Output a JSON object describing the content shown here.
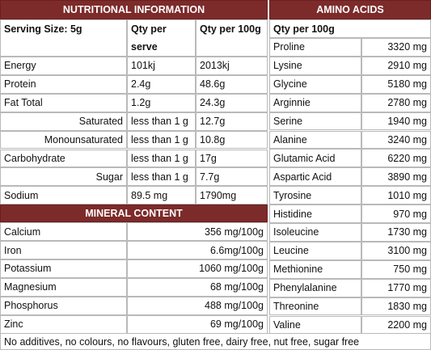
{
  "nutrition": {
    "title": "NUTRITIONAL INFORMATION",
    "header": [
      "Serving Size: 5g",
      "Qty per serve",
      "Qty per 100g"
    ],
    "rows": [
      [
        "Energy",
        "101kj",
        "2013kj"
      ],
      [
        "Protein",
        "2.4g",
        "48.6g"
      ],
      [
        "Fat Total",
        "1.2g",
        "24.3g"
      ],
      [
        "Saturated",
        "less than 1 g",
        "12.7g"
      ],
      [
        "Monounsaturated",
        "less than 1 g",
        "10.8g"
      ],
      [
        "Carbohydrate",
        "less than 1 g",
        "17g"
      ],
      [
        "Sugar",
        "less than 1 g",
        "7.7g"
      ],
      [
        "Sodium",
        "89.5 mg",
        "1790mg"
      ]
    ]
  },
  "minerals": {
    "title": "MINERAL CONTENT",
    "rows": [
      [
        "Calcium",
        "356 mg/100g"
      ],
      [
        "Iron",
        "6.6mg/100g"
      ],
      [
        "Potassium",
        "1060 mg/100g"
      ],
      [
        "Magnesium",
        "68 mg/100g"
      ],
      [
        "Phosphorus",
        "488 mg/100g"
      ],
      [
        "Zinc",
        "69 mg/100g"
      ]
    ]
  },
  "amino_acids": {
    "title": "AMINO ACIDS",
    "header": "Qty per 100g",
    "rows": [
      [
        "Proline",
        "3320 mg"
      ],
      [
        "Lysine",
        "2910 mg"
      ],
      [
        "Glycine",
        "5180 mg"
      ],
      [
        "Arginnie",
        "2780 mg"
      ],
      [
        "Serine",
        "1940 mg"
      ],
      [
        "Alanine",
        "3240 mg"
      ],
      [
        "Glutamic Acid",
        "6220 mg"
      ],
      [
        "Aspartic Acid",
        "3890 mg"
      ],
      [
        "Tyrosine",
        "1010 mg"
      ],
      [
        "Histidine",
        "970 mg"
      ],
      [
        "Isoleucine",
        "1730 mg"
      ],
      [
        "Leucine",
        "3100 mg"
      ],
      [
        "Methionine",
        "750 mg"
      ],
      [
        "Phenylalanine",
        "1770 mg"
      ],
      [
        "Threonine",
        "1830 mg"
      ],
      [
        "Valine",
        "2200 mg"
      ]
    ]
  },
  "footer": "No additives, no colours, no flavours, gluten free, dairy free, nut free, sugar free"
}
